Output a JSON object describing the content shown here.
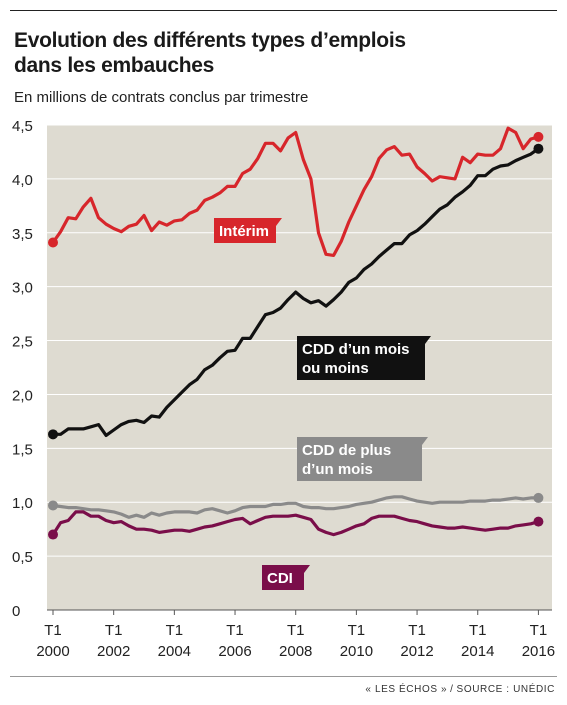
{
  "header": {
    "title_line1": "Evolution des différents types d’emplois",
    "title_line2": "dans les embauches",
    "subtitle": "En millions de contrats conclus par trimestre"
  },
  "footer": {
    "credit": "« LES ÉCHOS »",
    "separator": "/",
    "source": "SOURCE : UNÉDIC"
  },
  "colors": {
    "plot_bg": "#dedbd1",
    "interim": "#d7262b",
    "cdd_short": "#111111",
    "cdd_long": "#8a8a8a",
    "cdi": "#7a0e4a",
    "grid": "#ffffff"
  },
  "chart_data": {
    "type": "line",
    "title": "Evolution des différents types d’emplois dans les embauches",
    "subtitle": "En millions de contrats conclus par trimestre",
    "ylim": [
      0,
      4.5
    ],
    "yticks": [
      "0",
      "0,5",
      "1,0",
      "1,5",
      "2,0",
      "2,5",
      "3,0",
      "3,5",
      "4,0",
      "4,5"
    ],
    "xlim": [
      2000,
      2016.25
    ],
    "xticks": [
      {
        "x": 2000,
        "top": "T1",
        "bottom": "2000"
      },
      {
        "x": 2002,
        "top": "T1",
        "bottom": "2002"
      },
      {
        "x": 2004,
        "top": "T1",
        "bottom": "2004"
      },
      {
        "x": 2006,
        "top": "T1",
        "bottom": "2006"
      },
      {
        "x": 2008,
        "top": "T1",
        "bottom": "2008"
      },
      {
        "x": 2010,
        "top": "T1",
        "bottom": "2010"
      },
      {
        "x": 2012,
        "top": "T1",
        "bottom": "2012"
      },
      {
        "x": 2014,
        "top": "T1",
        "bottom": "2014"
      },
      {
        "x": 2016,
        "top": "T1",
        "bottom": "2016"
      }
    ],
    "grid": "horizontal",
    "x_start": 2000,
    "x_step": 0.25,
    "series": [
      {
        "name": "Intérim",
        "label_lines": [
          "Intérim"
        ],
        "color": "#d7262b",
        "values": [
          3.41,
          3.51,
          3.64,
          3.63,
          3.74,
          3.82,
          3.64,
          3.58,
          3.54,
          3.51,
          3.56,
          3.58,
          3.66,
          3.52,
          3.6,
          3.57,
          3.61,
          3.62,
          3.68,
          3.71,
          3.8,
          3.83,
          3.87,
          3.93,
          3.93,
          4.05,
          4.09,
          4.19,
          4.33,
          4.33,
          4.26,
          4.38,
          4.43,
          4.18,
          4.0,
          3.5,
          3.3,
          3.29,
          3.42,
          3.6,
          3.75,
          3.9,
          4.02,
          4.19,
          4.27,
          4.3,
          4.22,
          4.23,
          4.11,
          4.05,
          3.98,
          4.02,
          4.01,
          4.0,
          4.2,
          4.15,
          4.23,
          4.22,
          4.22,
          4.28,
          4.47,
          4.43,
          4.28,
          4.37,
          4.39
        ]
      },
      {
        "name": "CDD d’un mois ou moins",
        "label_lines": [
          "CDD d’un mois",
          "ou moins"
        ],
        "color": "#111111",
        "values": [
          1.63,
          1.63,
          1.68,
          1.68,
          1.68,
          1.7,
          1.72,
          1.62,
          1.67,
          1.72,
          1.75,
          1.76,
          1.74,
          1.8,
          1.79,
          1.88,
          1.95,
          2.02,
          2.09,
          2.14,
          2.23,
          2.27,
          2.34,
          2.4,
          2.41,
          2.52,
          2.52,
          2.63,
          2.74,
          2.76,
          2.8,
          2.88,
          2.95,
          2.89,
          2.85,
          2.87,
          2.82,
          2.88,
          2.95,
          3.04,
          3.08,
          3.16,
          3.21,
          3.28,
          3.34,
          3.4,
          3.4,
          3.48,
          3.52,
          3.58,
          3.65,
          3.72,
          3.76,
          3.83,
          3.88,
          3.94,
          4.03,
          4.03,
          4.09,
          4.12,
          4.13,
          4.17,
          4.2,
          4.23,
          4.28
        ]
      },
      {
        "name": "CDD de plus d’un mois",
        "label_lines": [
          "CDD de plus",
          "d’un mois"
        ],
        "color": "#8a8a8a",
        "values": [
          0.97,
          0.96,
          0.95,
          0.95,
          0.94,
          0.93,
          0.93,
          0.92,
          0.91,
          0.89,
          0.86,
          0.88,
          0.86,
          0.9,
          0.88,
          0.9,
          0.91,
          0.91,
          0.91,
          0.9,
          0.93,
          0.94,
          0.92,
          0.9,
          0.92,
          0.95,
          0.96,
          0.96,
          0.96,
          0.98,
          0.98,
          0.99,
          0.99,
          0.96,
          0.95,
          0.95,
          0.94,
          0.94,
          0.95,
          0.96,
          0.98,
          0.99,
          1.0,
          1.02,
          1.04,
          1.05,
          1.05,
          1.03,
          1.01,
          1.0,
          0.99,
          1.0,
          1.0,
          1.0,
          1.0,
          1.01,
          1.01,
          1.01,
          1.02,
          1.02,
          1.03,
          1.04,
          1.03,
          1.04,
          1.04
        ]
      },
      {
        "name": "CDI",
        "label_lines": [
          "CDI"
        ],
        "color": "#7a0e4a",
        "values": [
          0.7,
          0.81,
          0.83,
          0.91,
          0.91,
          0.87,
          0.87,
          0.83,
          0.81,
          0.82,
          0.78,
          0.75,
          0.75,
          0.74,
          0.72,
          0.73,
          0.74,
          0.74,
          0.73,
          0.75,
          0.77,
          0.78,
          0.8,
          0.82,
          0.84,
          0.85,
          0.8,
          0.83,
          0.86,
          0.87,
          0.87,
          0.87,
          0.88,
          0.86,
          0.84,
          0.75,
          0.72,
          0.7,
          0.72,
          0.75,
          0.78,
          0.8,
          0.85,
          0.87,
          0.87,
          0.87,
          0.85,
          0.83,
          0.82,
          0.8,
          0.78,
          0.77,
          0.76,
          0.76,
          0.77,
          0.76,
          0.75,
          0.74,
          0.75,
          0.76,
          0.76,
          0.78,
          0.79,
          0.8,
          0.82
        ]
      }
    ]
  }
}
